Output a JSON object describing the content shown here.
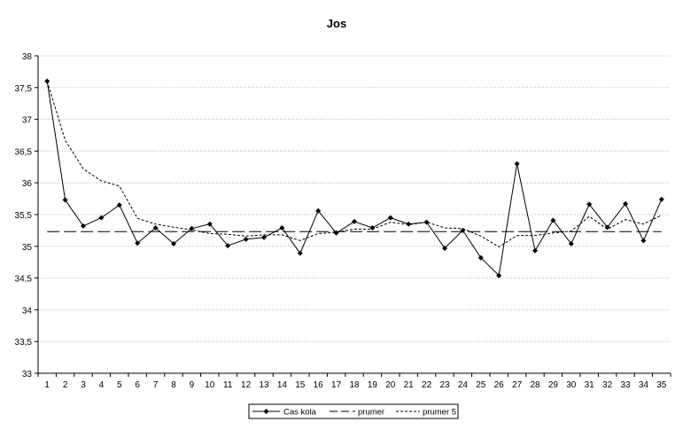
{
  "chart_data": {
    "type": "line",
    "title": "Jos",
    "xlabel": "",
    "ylabel": "",
    "categories": [
      "1",
      "2",
      "3",
      "4",
      "5",
      "6",
      "7",
      "8",
      "9",
      "10",
      "11",
      "12",
      "13",
      "14",
      "15",
      "16",
      "17",
      "18",
      "19",
      "20",
      "21",
      "22",
      "23",
      "24",
      "25",
      "26",
      "27",
      "28",
      "29",
      "30",
      "31",
      "32",
      "33",
      "34",
      "35"
    ],
    "ylim": [
      33,
      38
    ],
    "yticks": [
      33,
      33.5,
      34,
      34.5,
      35,
      35.5,
      36,
      36.5,
      37,
      37.5,
      38
    ],
    "ytick_labels": [
      "33",
      "33,5",
      "34",
      "34,5",
      "35",
      "35,5",
      "36",
      "36,5",
      "37",
      "37,5",
      "38"
    ],
    "grid": "horizontal dotted",
    "legend_position": "bottom",
    "series": [
      {
        "name": "Cas kola",
        "style": "solid-diamond",
        "color": "#000000",
        "values": [
          37.6,
          35.73,
          35.32,
          35.45,
          35.65,
          35.05,
          35.29,
          35.04,
          35.28,
          35.35,
          35.01,
          35.11,
          35.14,
          35.29,
          34.89,
          35.56,
          35.21,
          35.39,
          35.29,
          35.45,
          35.35,
          35.38,
          34.97,
          35.25,
          34.82,
          34.54,
          36.3,
          34.93,
          35.41,
          35.04,
          35.66,
          35.3,
          35.67,
          35.09,
          35.74
        ]
      },
      {
        "name": "prumer",
        "style": "long-dash",
        "color": "#000000",
        "values": [
          35.23,
          35.23,
          35.23,
          35.23,
          35.23,
          35.23,
          35.23,
          35.23,
          35.23,
          35.23,
          35.23,
          35.23,
          35.23,
          35.23,
          35.23,
          35.23,
          35.23,
          35.23,
          35.23,
          35.23,
          35.23,
          35.23,
          35.23,
          35.23,
          35.23,
          35.23,
          35.23,
          35.23,
          35.23,
          35.23,
          35.23,
          35.23,
          35.23,
          35.23,
          35.23
        ]
      },
      {
        "name": "prumer 5",
        "style": "short-dash",
        "color": "#000000",
        "values": [
          37.6,
          36.67,
          36.22,
          36.03,
          35.95,
          35.44,
          35.35,
          35.3,
          35.26,
          35.2,
          35.19,
          35.16,
          35.18,
          35.18,
          35.09,
          35.2,
          35.22,
          35.27,
          35.27,
          35.38,
          35.34,
          35.38,
          35.29,
          35.28,
          35.16,
          34.99,
          35.17,
          35.17,
          35.21,
          35.24,
          35.47,
          35.27,
          35.42,
          35.35,
          35.49
        ]
      }
    ]
  }
}
